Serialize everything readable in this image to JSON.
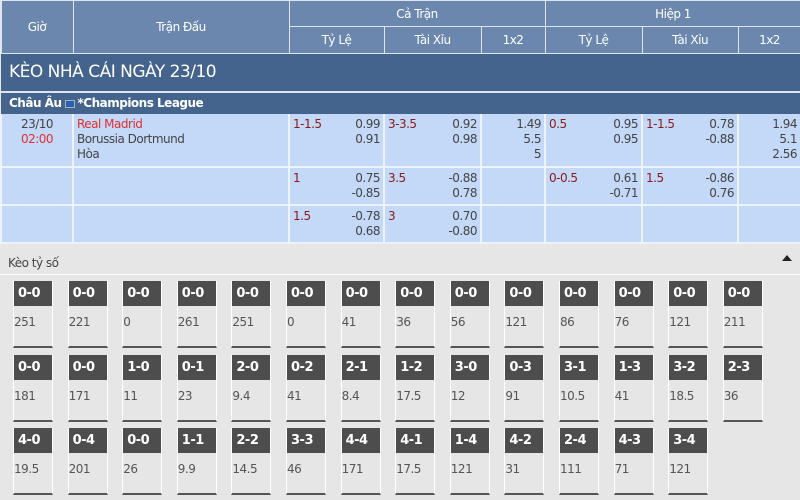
{
  "header": {
    "time": "Giờ",
    "match": "Trận Đấu",
    "full": "Cả Trận",
    "half": "Hiệp 1",
    "handicap": "Tỷ Lệ",
    "ou": "Tài Xỉu",
    "x12": "1x2"
  },
  "title": "KÈO NHÀ CÁI NGÀY 23/10",
  "league": {
    "region": "Châu Âu",
    "name": "*Champions League",
    "flag_icon": "eu-flag-icon"
  },
  "match": {
    "date": "23/10",
    "time": "02:00",
    "home": "Real Madrid",
    "away": "Borussia Dortmund",
    "draw": "Hòa"
  },
  "rows": [
    {
      "ft_hdp": "1-1.5",
      "ft_hdp_o": [
        "0.99",
        "0.91"
      ],
      "ft_ou": "3-3.5",
      "ft_ou_o": [
        "0.92",
        "0.98"
      ],
      "ft_1x2": [
        "1.49",
        "5.5",
        "5"
      ],
      "h1_hdp": "0.5",
      "h1_hdp_o": [
        "0.95",
        "0.95"
      ],
      "h1_ou": "1-1.5",
      "h1_ou_o": [
        "0.78",
        "-0.88"
      ],
      "h1_1x2": [
        "1.94",
        "5.1",
        "2.56"
      ]
    },
    {
      "ft_hdp": "1",
      "ft_hdp_o": [
        "0.75",
        "-0.85"
      ],
      "ft_ou": "3.5",
      "ft_ou_o": [
        "-0.88",
        "0.78"
      ],
      "ft_1x2": [
        "",
        "",
        ""
      ],
      "h1_hdp": "0-0.5",
      "h1_hdp_o": [
        "0.61",
        "-0.71"
      ],
      "h1_ou": "1.5",
      "h1_ou_o": [
        "-0.86",
        "0.76"
      ],
      "h1_1x2": [
        "",
        "",
        ""
      ]
    },
    {
      "ft_hdp": "1.5",
      "ft_hdp_o": [
        "-0.78",
        "0.68"
      ],
      "ft_ou": "3",
      "ft_ou_o": [
        "0.70",
        "-0.80"
      ],
      "ft_1x2": [
        "",
        "",
        ""
      ],
      "h1_hdp": "",
      "h1_hdp_o": [
        "",
        ""
      ],
      "h1_ou": "",
      "h1_ou_o": [
        "",
        ""
      ],
      "h1_1x2": [
        "",
        "",
        ""
      ]
    }
  ],
  "scores_title": "Kèo tỷ số",
  "scores": [
    [
      [
        "0-0",
        "251"
      ],
      [
        "0-0",
        "221"
      ],
      [
        "0-0",
        "0"
      ],
      [
        "0-0",
        "261"
      ],
      [
        "0-0",
        "251"
      ],
      [
        "0-0",
        "0"
      ],
      [
        "0-0",
        "41"
      ],
      [
        "0-0",
        "36"
      ],
      [
        "0-0",
        "56"
      ],
      [
        "0-0",
        "121"
      ],
      [
        "0-0",
        "86"
      ],
      [
        "0-0",
        "76"
      ],
      [
        "0-0",
        "121"
      ],
      [
        "0-0",
        "211"
      ]
    ],
    [
      [
        "0-0",
        "181"
      ],
      [
        "0-0",
        "171"
      ],
      [
        "1-0",
        "11"
      ],
      [
        "0-1",
        "23"
      ],
      [
        "2-0",
        "9.4"
      ],
      [
        "0-2",
        "41"
      ],
      [
        "2-1",
        "8.4"
      ],
      [
        "1-2",
        "17.5"
      ],
      [
        "3-0",
        "12"
      ],
      [
        "0-3",
        "91"
      ],
      [
        "3-1",
        "10.5"
      ],
      [
        "1-3",
        "41"
      ],
      [
        "3-2",
        "18.5"
      ],
      [
        "2-3",
        "36"
      ]
    ],
    [
      [
        "4-0",
        "19.5"
      ],
      [
        "0-4",
        "201"
      ],
      [
        "0-0",
        "26"
      ],
      [
        "1-1",
        "9.9"
      ],
      [
        "2-2",
        "14.5"
      ],
      [
        "3-3",
        "46"
      ],
      [
        "4-4",
        "171"
      ],
      [
        "4-1",
        "17.5"
      ],
      [
        "1-4",
        "121"
      ],
      [
        "4-2",
        "31"
      ],
      [
        "2-4",
        "111"
      ],
      [
        "4-3",
        "71"
      ],
      [
        "3-4",
        "121"
      ]
    ]
  ]
}
